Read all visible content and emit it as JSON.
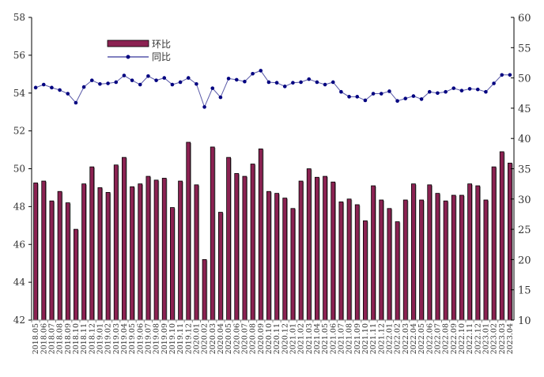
{
  "chart_data": {
    "type": "bar+line",
    "title": "",
    "categories": [
      "2018.05",
      "2018.06",
      "2018.07",
      "2018.08",
      "2018.09",
      "2018.10",
      "2018.11",
      "2018.12",
      "2019.01",
      "2019.02",
      "2019.03",
      "2019.04",
      "2019.05",
      "2019.06",
      "2019.07",
      "2019.08",
      "2019.09",
      "2019.10",
      "2019.11",
      "2019.12",
      "2020.01",
      "2020.02",
      "2020.03",
      "2020.04",
      "2020.05",
      "2020.06",
      "2020.07",
      "2020.08",
      "2020.09",
      "2020.10",
      "2020.11",
      "2020.12",
      "2021.01",
      "2021.02",
      "2021.03",
      "2021.04",
      "2021.05",
      "2021.06",
      "2021.07",
      "2021.08",
      "2021.09",
      "2021.10",
      "2021.11",
      "2021.12",
      "2022.01",
      "2022.02",
      "2022.03",
      "2022.04",
      "2022.05",
      "2022.06",
      "2022.07",
      "2022.08",
      "2022.09",
      "2022.10",
      "2022.11",
      "2022.12",
      "2023.01",
      "2023.02",
      "2023.03",
      "2023.04"
    ],
    "series": [
      {
        "name": "环比",
        "type": "bar",
        "axis": "left",
        "color": "#8B2252",
        "values": [
          49.25,
          49.35,
          48.3,
          48.8,
          48.2,
          46.8,
          49.2,
          50.1,
          49.0,
          48.75,
          50.2,
          50.6,
          49.05,
          49.2,
          49.6,
          49.4,
          49.5,
          47.95,
          49.35,
          51.4,
          49.15,
          45.2,
          51.15,
          47.7,
          50.6,
          49.75,
          49.6,
          50.25,
          51.05,
          48.8,
          48.7,
          48.45,
          47.9,
          49.35,
          50.0,
          49.55,
          49.6,
          49.3,
          48.25,
          48.4,
          48.1,
          47.25,
          49.1,
          48.35,
          47.9,
          47.2,
          48.35,
          49.2,
          48.35,
          49.15,
          48.7,
          48.3,
          48.6,
          48.6,
          49.2,
          49.1,
          48.35,
          50.1,
          50.9,
          50.3
        ]
      },
      {
        "name": "同比",
        "type": "line",
        "axis": "right",
        "color": "#000080",
        "values": [
          48.4,
          48.9,
          48.4,
          48.0,
          47.4,
          45.9,
          48.5,
          49.6,
          49.0,
          49.1,
          49.3,
          50.4,
          49.6,
          48.9,
          50.3,
          49.6,
          50.0,
          48.9,
          49.3,
          50.0,
          49.0,
          45.2,
          48.3,
          46.8,
          49.9,
          49.7,
          49.4,
          50.7,
          51.2,
          49.3,
          49.2,
          48.6,
          49.2,
          49.3,
          49.8,
          49.3,
          48.9,
          49.3,
          47.7,
          46.9,
          46.9,
          46.3,
          47.4,
          47.4,
          47.8,
          46.2,
          46.6,
          47.0,
          46.5,
          47.7,
          47.5,
          47.7,
          48.3,
          47.9,
          48.2,
          48.1,
          47.7,
          49.1,
          50.5,
          50.5
        ]
      }
    ],
    "y_left": {
      "range": [
        42,
        58
      ],
      "ticks": [
        "42",
        "44",
        "46",
        "48",
        "50",
        "52",
        "54",
        "56",
        "58"
      ]
    },
    "y_right": {
      "range": [
        10,
        60
      ],
      "ticks": [
        "10",
        "15",
        "20",
        "25",
        "30",
        "35",
        "40",
        "45",
        "50",
        "55",
        "60"
      ]
    },
    "grid": false,
    "legend_placement": "top-left"
  }
}
